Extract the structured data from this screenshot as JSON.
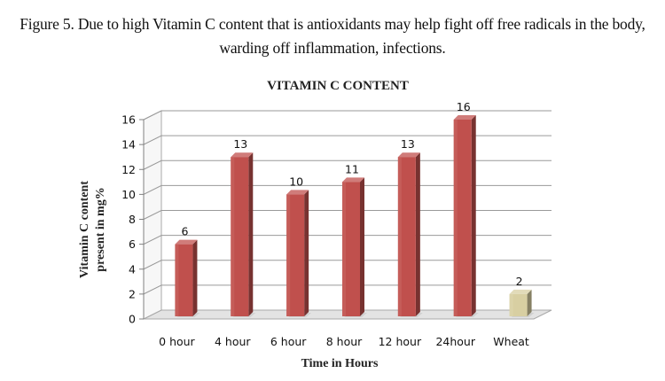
{
  "figure_caption": "Figure 5. Due to high Vitamin C content that is antioxidants may help fight off free radicals in the body, warding off inflammation, infections.",
  "chart_data": {
    "type": "bar",
    "title": "VITAMIN C CONTENT",
    "xlabel": "Time in Hours",
    "ylabel_lines": [
      "Vitamin C content",
      "present in mg%"
    ],
    "categories": [
      "0 hour",
      "4 hour",
      "6 hour",
      "8 hour",
      "12 hour",
      "24hour",
      "Wheat"
    ],
    "values": [
      6,
      13,
      10,
      11,
      13,
      16,
      2
    ],
    "data_labels": [
      "6",
      "13",
      "10",
      "11",
      "13",
      "16",
      "2"
    ],
    "ylim": [
      0,
      16
    ],
    "yticks": [
      "0",
      "2",
      "4",
      "6",
      "8",
      "10",
      "12",
      "14",
      "16"
    ],
    "grid": true,
    "colors": [
      "#c0504d",
      "#c0504d",
      "#c0504d",
      "#c0504d",
      "#c0504d",
      "#c0504d",
      "#d8cfa2"
    ]
  }
}
